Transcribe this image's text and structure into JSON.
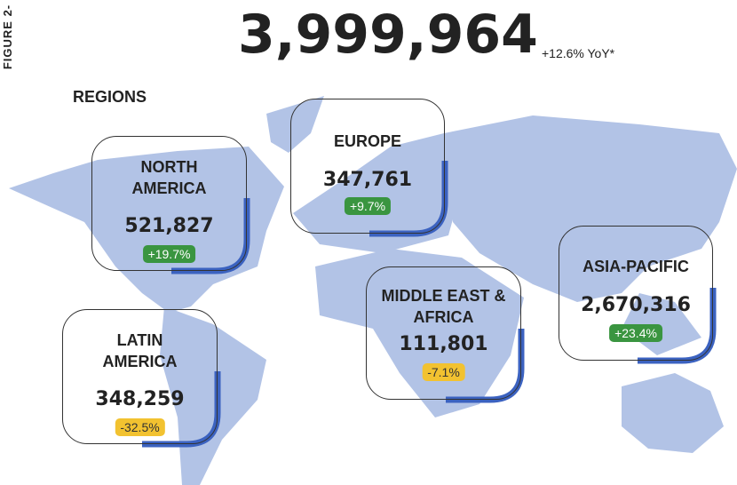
{
  "figure_label": "FIGURE 2-",
  "total": "3,999,964",
  "yoy": "+12.6% YoY*",
  "section_title": "REGIONS",
  "regions": [
    {
      "name": "NORTH AMERICA",
      "value": "521,827",
      "change": "+19.7%"
    },
    {
      "name": "EUROPE",
      "value": "347,761",
      "change": "+9.7%"
    },
    {
      "name": "LATIN AMERICA",
      "value": "348,259",
      "change": "-32.5%"
    },
    {
      "name": "MIDDLE EAST & AFRICA",
      "value": "111,801",
      "change": "-7.1%"
    },
    {
      "name": "ASIA-PACIFIC",
      "value": "2,670,316",
      "change": "+23.4%"
    }
  ]
}
